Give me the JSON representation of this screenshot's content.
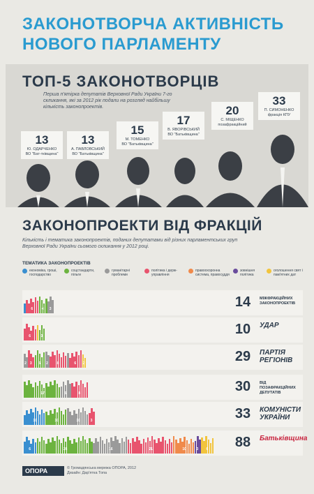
{
  "title_line1": "ЗАКОНОТВОРЧА АКТИВНІСТЬ",
  "title_line2": "НОВОГО ПАРЛАМЕНТУ",
  "top5": {
    "title": "ТОП-5 ЗАКОНОТВОРЦІВ",
    "desc": "Перша п'ятірка депутатів Верховної Ради України 7-го скликання, які за 2012 рік подали на розгляд найбільшу кількість законопроектів.",
    "deputies": [
      {
        "count": "13",
        "name": "Ю. ОДАРЧЕНКО",
        "party": "ВО \"Бат-тківщина\""
      },
      {
        "count": "13",
        "name": "А. ПАВЛОВСЬКИЙ",
        "party": "ВО \"Батьківщина\""
      },
      {
        "count": "15",
        "name": "М. ТОМЕНКО",
        "party": "ВО \"Батьківщина\""
      },
      {
        "count": "17",
        "name": "В. ЯВОРІВСЬКИЙ",
        "party": "ВО \"Батьківщина\""
      },
      {
        "count": "20",
        "name": "С. МІЩЕНКО",
        "party": "позафракційний"
      },
      {
        "count": "33",
        "name": "П. СИМОНЕНКО",
        "party": "фракція КПУ"
      }
    ]
  },
  "fractions": {
    "title": "ЗАКОНОПРОЕКТИ ВІД ФРАКЦІЙ",
    "desc": "Кількість і тематика законопроектів, поданих депутатами від різних парламентських груп Верховної Ради України сьомого скликання у 2012 році.",
    "topics_label": "ТЕМАТИКА ЗАКОНОПРОЕКТІВ",
    "legend": [
      {
        "label": "економіка, гроші, господарство",
        "color": "#3a8fd0"
      },
      {
        "label": "соцстандарти, пільги",
        "color": "#6cb33f"
      },
      {
        "label": "гуманітарні проблеми",
        "color": "#9a9a9a"
      },
      {
        "label": "політика і держ-управління",
        "color": "#e8546e"
      },
      {
        "label": "правоохоронна система, правосуддя",
        "color": "#f08a4b"
      },
      {
        "label": "зовнішня політика",
        "color": "#6a4c9c"
      },
      {
        "label": "оголошення свят і пам'ятних дат",
        "color": "#f2c43d"
      }
    ],
    "rows": [
      {
        "count": "14",
        "label": "МІЖФРАКЦІЙНИХ ЗАКОНОПРОЕКТІВ",
        "logo": ""
      },
      {
        "count": "10",
        "label": "",
        "logo": "УДАР"
      },
      {
        "count": "29",
        "label": "",
        "logo": "ПАРТІЯ РЕГІОНІВ"
      },
      {
        "count": "30",
        "label": "ВІД ПОЗАФРАКЦІЙНИХ ДЕПУТАТІВ",
        "logo": ""
      },
      {
        "count": "33",
        "label": "",
        "logo": "КОМУНІСТИ УКРАЇНИ"
      },
      {
        "count": "88",
        "label": "",
        "logo": "Батьківщина"
      }
    ]
  },
  "footer": {
    "logo": "ОПОРА",
    "line1": "© Громадянська мережа ОПОРА, 2012",
    "line2": "Дизайн: Дар'ятка Топа"
  },
  "chart_data": {
    "type": "bar",
    "categories": [
      "МІЖФРАКЦІЙНИХ ЗАКОНОПРОЕКТІВ",
      "УДАР",
      "ПАРТІЯ РЕГІОНІВ",
      "ВІД ПОЗАФРАКЦІЙНИХ ДЕПУТАТІВ",
      "КОМУНІСТИ УКРАЇНИ",
      "Батьківщина"
    ],
    "values": [
      14,
      10,
      29,
      30,
      33,
      88
    ],
    "topic_breakdown": [
      {
        "row": "МІЖФРАКЦІЙНИХ ЗАКОНОПРОЕКТІВ",
        "segments": [
          [
            0,
            1
          ],
          [
            3,
            6
          ],
          [
            1,
            4
          ],
          [
            2,
            3
          ]
        ]
      },
      {
        "row": "УДАР",
        "segments": [
          [
            3,
            6
          ],
          [
            6,
            1
          ],
          [
            1,
            3
          ]
        ]
      },
      {
        "row": "ПАРТІЯ РЕГІОНІВ",
        "segments": [
          [
            2,
            2
          ],
          [
            3,
            3
          ],
          [
            1,
            5
          ],
          [
            2,
            2
          ],
          [
            3,
            8
          ],
          [
            2,
            1
          ],
          [
            3,
            6
          ],
          [
            6,
            2
          ]
        ]
      },
      {
        "row": "ВІД ПОЗАФРАКЦІЙНИХ ДЕПУТАТІВ",
        "segments": [
          [
            1,
            17
          ],
          [
            2,
            5
          ],
          [
            3,
            8
          ]
        ]
      },
      {
        "row": "КОМУНІСТИ УКРАЇНИ",
        "segments": [
          [
            0,
            10
          ],
          [
            1,
            10
          ],
          [
            2,
            10
          ],
          [
            3,
            3
          ]
        ]
      },
      {
        "row": "Батьківщина",
        "segments": [
          [
            0,
            6
          ],
          [
            1,
            26
          ],
          [
            2,
            16
          ],
          [
            3,
            21
          ],
          [
            4,
            10
          ],
          [
            5,
            3
          ],
          [
            6,
            6
          ]
        ]
      }
    ],
    "topic_labels": [
      "економіка, гроші, господарство",
      "соцстандарти, пільги",
      "гуманітарні проблеми",
      "політика і держ-управління",
      "правоохоронна система, правосуддя",
      "зовнішня політика",
      "оголошення свят і пам'ятних дат"
    ]
  }
}
